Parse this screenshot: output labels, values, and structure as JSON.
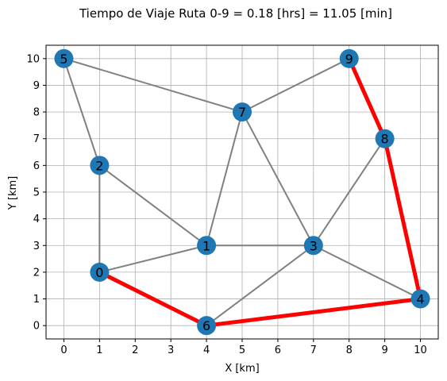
{
  "chart_data": {
    "type": "scatter",
    "title": "Tiempo de Viaje Ruta 0-9 = 0.18 [hrs] = 11.05 [min]",
    "xlabel": "X [km]",
    "ylabel": "Y [km]",
    "xlim": [
      -0.5,
      10.5
    ],
    "ylim": [
      -0.5,
      10.5
    ],
    "xticks": [
      0,
      1,
      2,
      3,
      4,
      5,
      6,
      7,
      8,
      9,
      10
    ],
    "yticks": [
      0,
      1,
      2,
      3,
      4,
      5,
      6,
      7,
      8,
      9,
      10
    ],
    "grid": true,
    "colors": {
      "node": "#1f77b4",
      "edge": "#808080",
      "route": "#ff0000"
    },
    "nodes": [
      {
        "id": "0",
        "x": 1,
        "y": 2
      },
      {
        "id": "1",
        "x": 4,
        "y": 3
      },
      {
        "id": "2",
        "x": 1,
        "y": 6
      },
      {
        "id": "3",
        "x": 7,
        "y": 3
      },
      {
        "id": "4",
        "x": 10,
        "y": 1
      },
      {
        "id": "5",
        "x": 0,
        "y": 10
      },
      {
        "id": "6",
        "x": 4,
        "y": 0
      },
      {
        "id": "7",
        "x": 5,
        "y": 8
      },
      {
        "id": "8",
        "x": 9,
        "y": 7
      },
      {
        "id": "9",
        "x": 8,
        "y": 10
      }
    ],
    "edges": [
      [
        "5",
        "2"
      ],
      [
        "5",
        "7"
      ],
      [
        "9",
        "7"
      ],
      [
        "2",
        "0"
      ],
      [
        "2",
        "1"
      ],
      [
        "7",
        "1"
      ],
      [
        "7",
        "3"
      ],
      [
        "1",
        "0"
      ],
      [
        "1",
        "3"
      ],
      [
        "3",
        "8"
      ],
      [
        "3",
        "6"
      ],
      [
        "3",
        "4"
      ]
    ],
    "route": [
      [
        "0",
        "6"
      ],
      [
        "6",
        "4"
      ],
      [
        "4",
        "8"
      ],
      [
        "8",
        "9"
      ]
    ]
  }
}
